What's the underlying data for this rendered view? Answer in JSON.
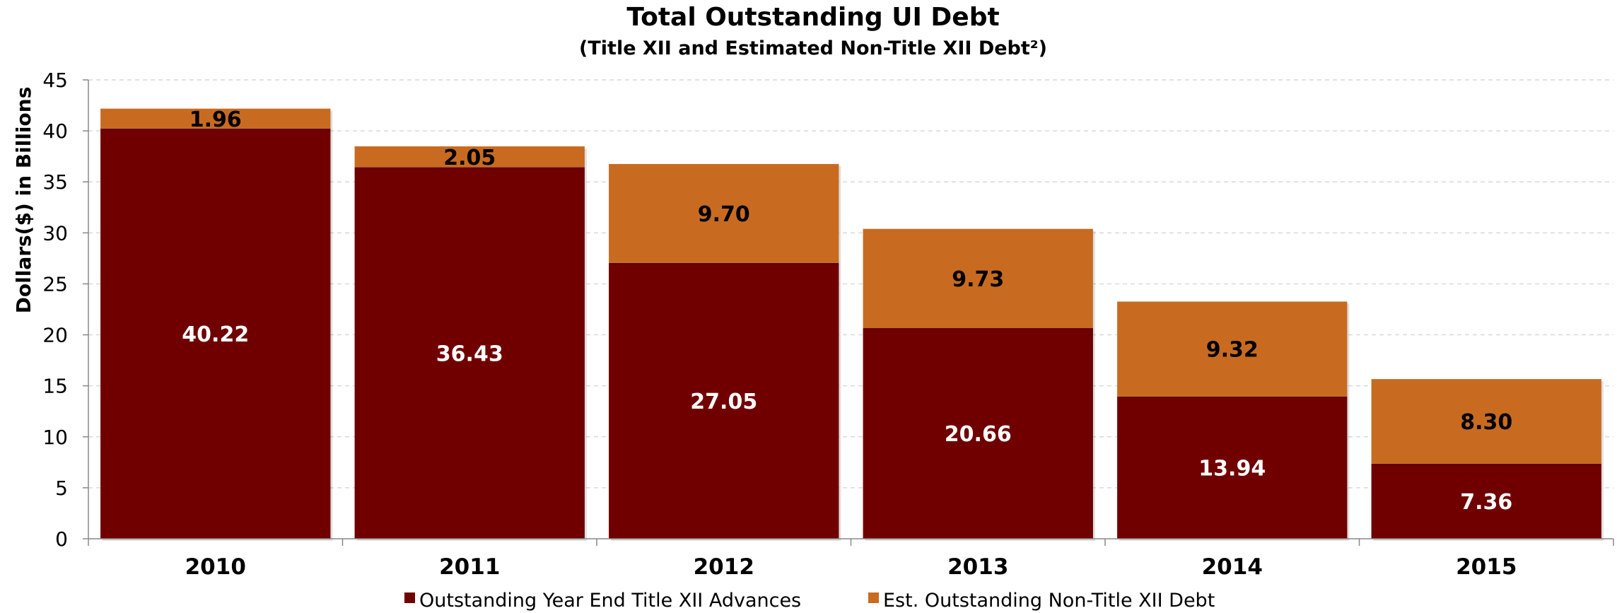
{
  "chart_data": {
    "type": "bar",
    "stacked": true,
    "title": "Total Outstanding UI Debt",
    "subtitle": "(Title XII and Estimated Non-Title XII Debt²)",
    "ylabel": "Dollars($) in Billions",
    "xlabel": "",
    "ylim": [
      0,
      45
    ],
    "yticks": [
      "0",
      "5",
      "10",
      "15",
      "20",
      "25",
      "30",
      "35",
      "40",
      "45"
    ],
    "grid": true,
    "legend_position": "bottom",
    "categories": [
      "2010",
      "2011",
      "2012",
      "2013",
      "2014",
      "2015"
    ],
    "series": [
      {
        "name": "Outstanding Year End Title XII Advances",
        "color": "#700000",
        "label_color": "#ffffff",
        "values": [
          40.22,
          36.43,
          27.05,
          20.66,
          13.94,
          7.36
        ],
        "labels": [
          "40.22",
          "36.43",
          "27.05",
          "20.66",
          "13.94",
          "7.36"
        ]
      },
      {
        "name": "Est. Outstanding Non-Title XII Debt",
        "color": "#C86B21",
        "label_color": "#000000",
        "values": [
          1.96,
          2.05,
          9.7,
          9.73,
          9.32,
          8.3
        ],
        "labels": [
          "1.96",
          "2.05",
          "9.70",
          "9.73",
          "9.32",
          "8.30"
        ]
      }
    ]
  }
}
